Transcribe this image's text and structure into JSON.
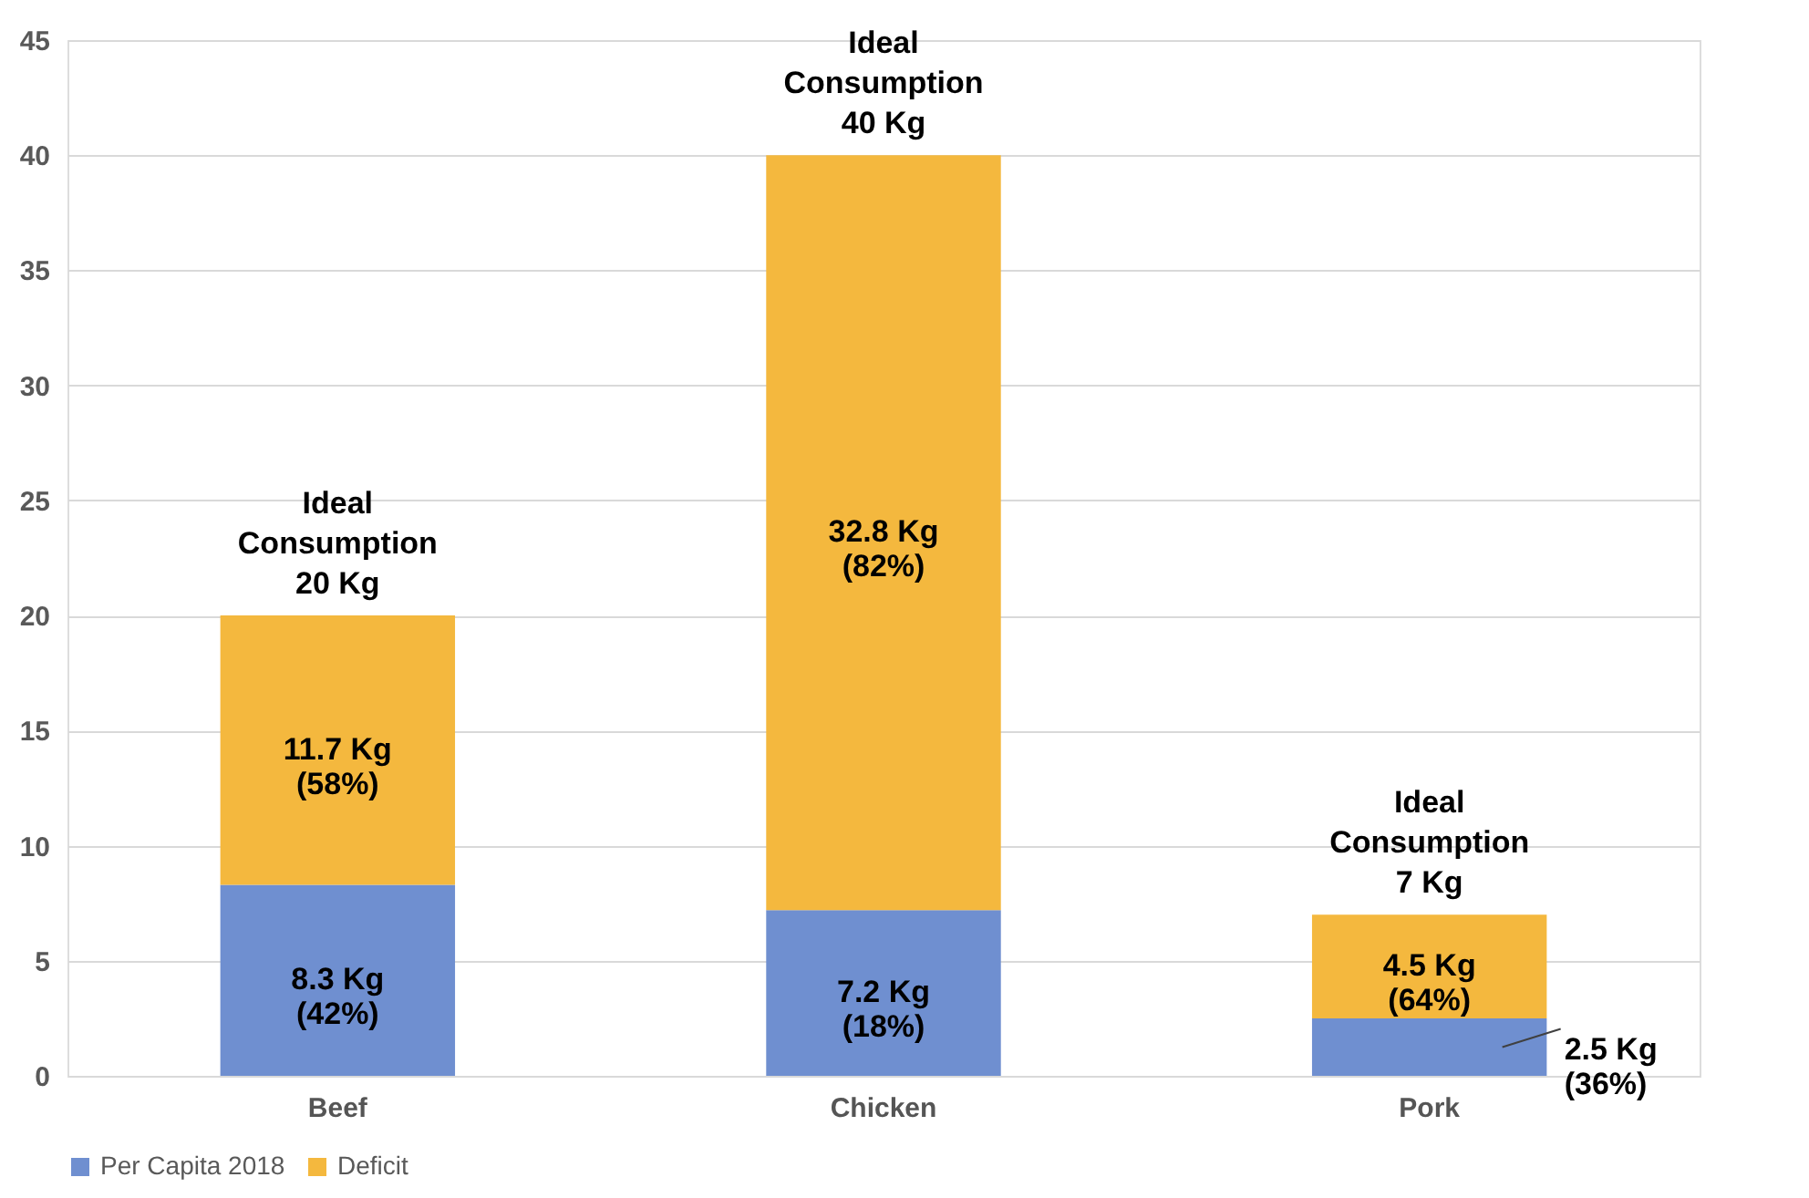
{
  "chart_data": {
    "type": "bar",
    "stacked": true,
    "categories": [
      "Beef",
      "Chicken",
      "Pork"
    ],
    "series": [
      {
        "name": "Per Capita 2018",
        "color": "#6f8fd0",
        "values": [
          8.3,
          7.2,
          2.5
        ],
        "value_labels": [
          "8.3 Kg\n(42%)",
          "7.2 Kg\n(18%)",
          "2.5 Kg\n(36%)"
        ]
      },
      {
        "name": "Deficit",
        "color": "#f4b83e",
        "values": [
          11.7,
          32.8,
          4.5
        ],
        "value_labels": [
          "11.7 Kg\n(58%)",
          "32.8 Kg\n(82%)",
          "4.5 Kg\n(64%)"
        ]
      }
    ],
    "totals": [
      "Ideal\nConsumption\n20 Kg",
      "Ideal\nConsumption\n40 Kg",
      "Ideal\nConsumption\n7 Kg"
    ],
    "ylim": [
      0,
      45
    ],
    "yticks": [
      0,
      5,
      10,
      15,
      20,
      25,
      30,
      35,
      40,
      45
    ],
    "grid": "y",
    "legend": "bottom"
  }
}
